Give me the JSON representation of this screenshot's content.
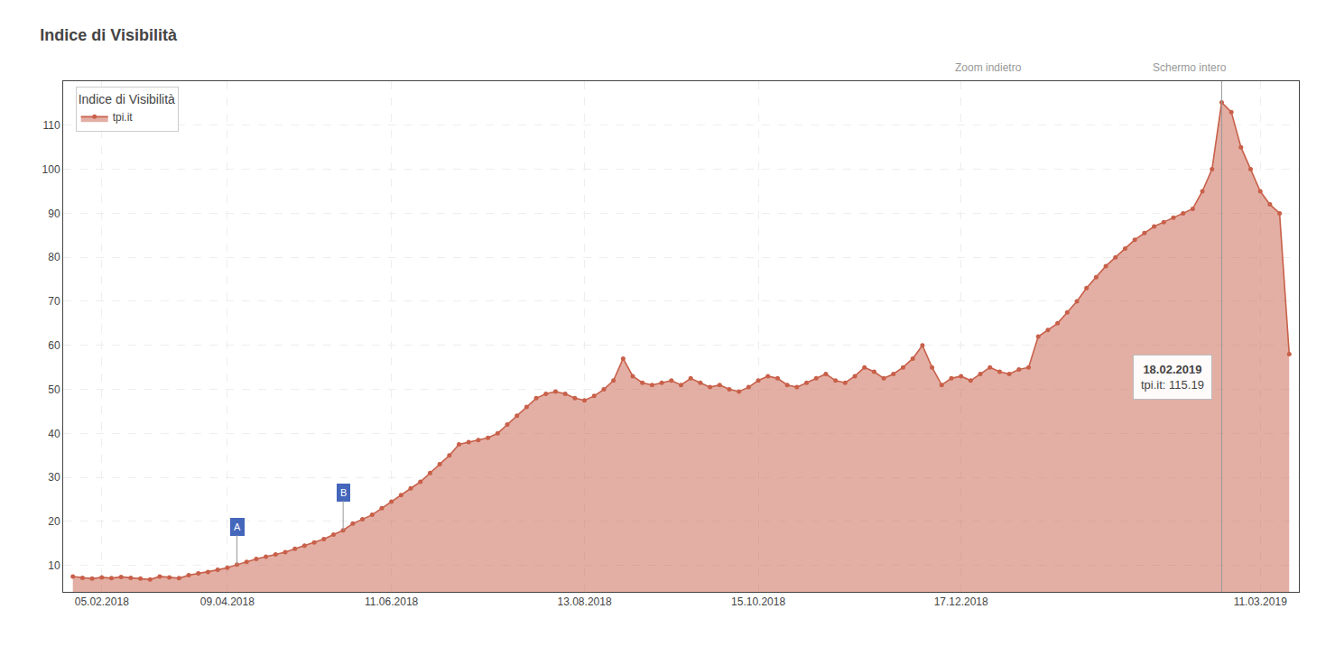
{
  "chart_data": {
    "type": "area",
    "title": "Indice di Visibilità",
    "legend_title": "Indice di Visibilità",
    "categories": [
      null,
      null,
      null,
      "05.02.2018",
      null,
      null,
      null,
      null,
      null,
      null,
      null,
      null,
      null,
      null,
      null,
      null,
      "09.04.2018",
      null,
      null,
      null,
      null,
      null,
      null,
      null,
      null,
      null,
      null,
      null,
      null,
      null,
      null,
      null,
      null,
      "11.06.2018",
      null,
      null,
      null,
      null,
      null,
      null,
      null,
      null,
      null,
      null,
      null,
      null,
      null,
      null,
      null,
      null,
      null,
      null,
      null,
      "13.08.2018",
      null,
      null,
      null,
      null,
      null,
      null,
      null,
      null,
      null,
      null,
      null,
      null,
      null,
      null,
      null,
      null,
      null,
      "15.10.2018",
      null,
      null,
      null,
      null,
      null,
      null,
      null,
      null,
      null,
      null,
      null,
      null,
      null,
      null,
      null,
      null,
      null,
      null,
      null,
      null,
      "17.12.2018",
      null,
      null,
      null,
      null,
      null,
      null,
      null,
      null,
      null,
      null,
      null,
      null,
      null,
      null,
      null,
      null,
      null,
      null,
      null,
      null,
      null,
      null,
      null,
      null,
      null,
      null,
      null,
      null,
      null,
      null,
      "11.03.2019",
      null,
      null,
      null
    ],
    "series": [
      {
        "name": "tpi.it",
        "color": "#c8604a",
        "marker": "circle",
        "values": [
          7.5,
          7.2,
          7.0,
          7.3,
          7.1,
          7.4,
          7.2,
          7.0,
          6.8,
          7.5,
          7.3,
          7.1,
          7.8,
          8.2,
          8.5,
          9.0,
          9.5,
          10.2,
          10.8,
          11.5,
          12.0,
          12.5,
          13.0,
          13.8,
          14.5,
          15.2,
          16.0,
          17.0,
          18.0,
          19.5,
          20.5,
          21.5,
          23.0,
          24.5,
          26.0,
          27.5,
          29.0,
          31.0,
          33.0,
          35.0,
          37.5,
          38.0,
          38.5,
          39.0,
          40.0,
          42.0,
          44.0,
          46.0,
          48.0,
          49.0,
          49.5,
          49.0,
          48.0,
          47.5,
          48.5,
          50.0,
          52.0,
          57.0,
          53.0,
          51.5,
          51.0,
          51.5,
          52.0,
          51.0,
          52.5,
          51.5,
          50.5,
          51.0,
          50.0,
          49.5,
          50.5,
          52.0,
          53.0,
          52.5,
          51.0,
          50.5,
          51.5,
          52.5,
          53.5,
          52.0,
          51.5,
          53.0,
          55.0,
          54.0,
          52.5,
          53.5,
          55.0,
          57.0,
          60.0,
          55.0,
          51.0,
          52.5,
          53.0,
          52.0,
          53.5,
          55.0,
          54.0,
          53.5,
          54.5,
          55.0,
          62.0,
          63.5,
          65.0,
          67.5,
          70.0,
          73.0,
          75.5,
          78.0,
          80.0,
          82.0,
          84.0,
          85.5,
          87.0,
          88.0,
          89.0,
          90.0,
          91.0,
          95.0,
          100.0,
          115.19,
          113.0,
          105.0,
          100.0,
          95.0,
          92.0,
          90.0,
          58.0
        ]
      }
    ],
    "ylim": [
      4,
      120
    ],
    "yticks": [
      10,
      20,
      30,
      40,
      50,
      60,
      70,
      80,
      90,
      100,
      110
    ],
    "grid": true,
    "legend": "upper left",
    "annotations": [
      {
        "kind": "badge",
        "x": 17,
        "text": "A",
        "color": "#4466bb"
      },
      {
        "kind": "badge",
        "x": 28,
        "text": "B",
        "color": "#4466bb"
      },
      {
        "kind": "tooltip",
        "x": 119,
        "title": "18.02.2019",
        "text": "tpi.it: 115.19"
      },
      {
        "kind": "button",
        "text": "Zoom indietro"
      },
      {
        "kind": "button",
        "text": "Schermo intero"
      }
    ]
  }
}
